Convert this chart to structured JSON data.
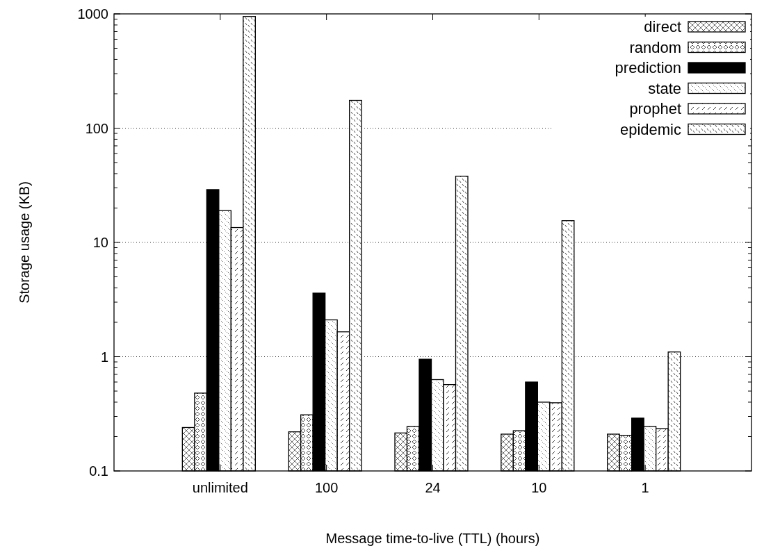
{
  "chart_data": {
    "type": "bar",
    "xlabel": "Message time-to-live (TTL) (hours)",
    "ylabel": "Storage usage (KB)",
    "categories": [
      "unlimited",
      "100",
      "24",
      "10",
      "1"
    ],
    "series": [
      {
        "name": "direct",
        "color": "#000000",
        "values": [
          0.24,
          0.22,
          0.215,
          0.21,
          0.21
        ]
      },
      {
        "name": "random",
        "color": "#000000",
        "values": [
          0.48,
          0.31,
          0.245,
          0.225,
          0.205
        ]
      },
      {
        "name": "prediction",
        "color": "#000000",
        "values": [
          29,
          3.6,
          0.95,
          0.6,
          0.29
        ]
      },
      {
        "name": "state",
        "color": "#000000",
        "values": [
          19,
          2.1,
          0.63,
          0.4,
          0.245
        ]
      },
      {
        "name": "prophet",
        "color": "#000000",
        "values": [
          13.5,
          1.65,
          0.57,
          0.395,
          0.235
        ]
      },
      {
        "name": "epidemic",
        "color": "#000000",
        "values": [
          950,
          175,
          38,
          15.5,
          1.1
        ]
      }
    ],
    "log": true,
    "ylim": [
      0.1,
      1000
    ],
    "yticks": [
      {
        "value": 0.1,
        "label": "0.1"
      },
      1,
      10,
      100,
      1000
    ],
    "grid": "y",
    "legend": "top right"
  }
}
